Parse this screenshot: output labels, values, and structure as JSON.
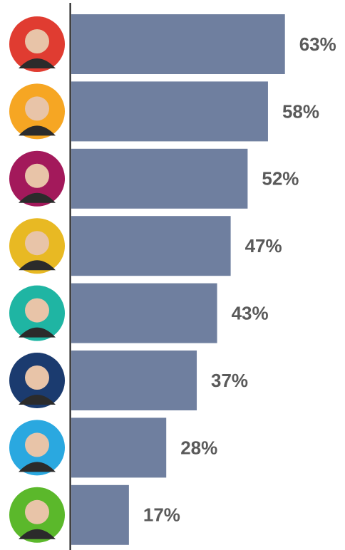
{
  "chart_data": {
    "type": "bar",
    "orientation": "horizontal",
    "categories": [
      null,
      null,
      null,
      null,
      null,
      null,
      null,
      null
    ],
    "values": [
      63,
      58,
      52,
      47,
      43,
      37,
      28,
      17
    ],
    "value_labels": [
      "63%",
      "58%",
      "52%",
      "47%",
      "43%",
      "37%",
      "28%",
      "17%"
    ],
    "color": "#6f7f9f",
    "xlim": [
      0,
      66
    ]
  }
}
